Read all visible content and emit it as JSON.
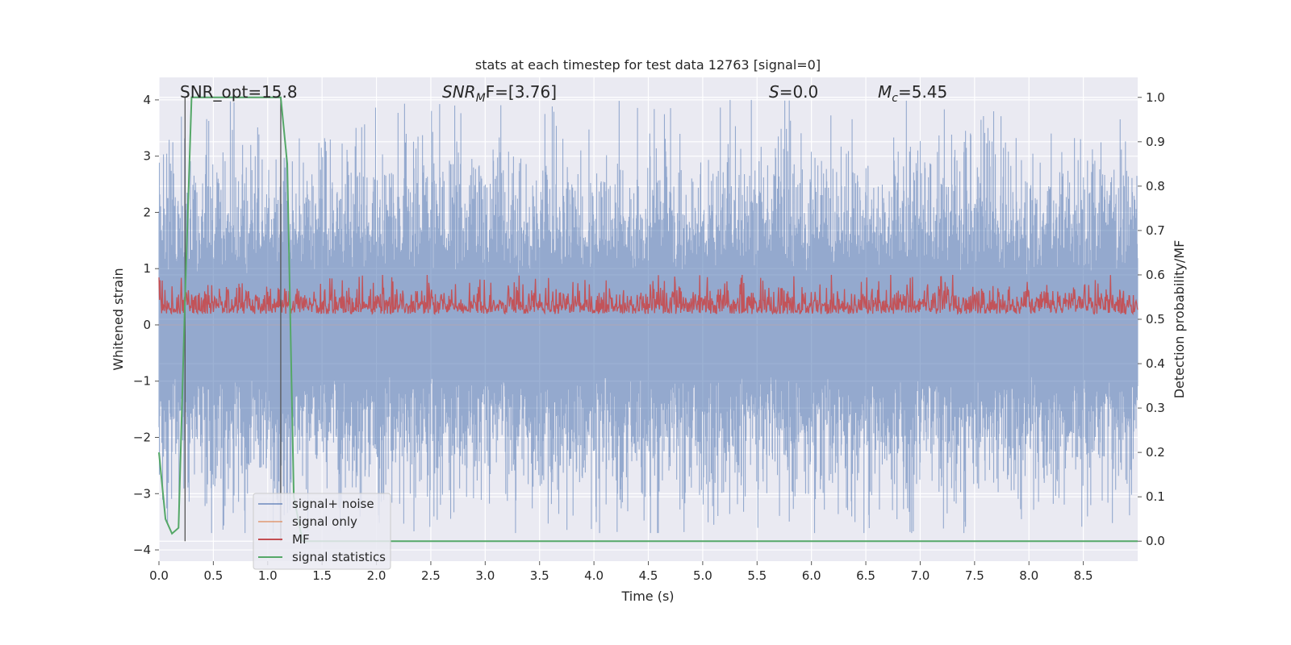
{
  "chart_data": {
    "type": "line",
    "title": "stats at each timestep for test data 12763 [signal=0]",
    "xlabel": "Time (s)",
    "ylabel_left": "Whitened strain",
    "ylabel_right": "Detection probability/MF",
    "xlim": [
      0,
      9.0
    ],
    "ylim_left": [
      -4.2,
      4.4
    ],
    "ylim_right": [
      -0.045,
      1.045
    ],
    "x_ticks": [
      "0.0",
      "0.5",
      "1.0",
      "1.5",
      "2.0",
      "2.5",
      "3.0",
      "3.5",
      "4.0",
      "4.5",
      "5.0",
      "5.5",
      "6.0",
      "6.5",
      "7.0",
      "7.5",
      "8.0",
      "8.5"
    ],
    "y_left_ticks": [
      "4",
      "3",
      "2",
      "1",
      "0",
      "−1",
      "−2",
      "−3",
      "−4"
    ],
    "y_right_ticks": [
      "1.0",
      "0.9",
      "0.8",
      "0.7",
      "0.6",
      "0.5",
      "0.4",
      "0.3",
      "0.2",
      "0.1",
      "0.0"
    ],
    "grid": true,
    "legend_position": "lower-left",
    "annotations": {
      "snr_opt": "SNR_opt=15.8",
      "snr_mf_base": "SNR",
      "snr_mf_sub": "M",
      "snr_mf_rest": "F=[3.76]",
      "s_italic": "S",
      "s_value": "=0.0",
      "mc_base": "M",
      "mc_sub": "c",
      "mc_value": "=5.45"
    },
    "series": [
      {
        "name": "signal+ noise",
        "color": "#4c72b0",
        "description_axis": "left",
        "amplitude_envelope": [
          -3.7,
          4.0
        ]
      },
      {
        "name": "signal only",
        "color": "#dd8452",
        "axis": "left",
        "values_constant": 0.0
      },
      {
        "name": "MF",
        "color": "#c44e52",
        "axis": "right",
        "range": [
          0.5,
          0.6
        ]
      },
      {
        "name": "signal statistics",
        "color": "#55a868",
        "axis": "right",
        "x": [
          0.0,
          0.06,
          0.12,
          0.18,
          0.24,
          0.3,
          0.36,
          0.9,
          1.12,
          1.18,
          1.24,
          1.32,
          1.5,
          3.0,
          6.0,
          9.0
        ],
        "values": [
          0.2,
          0.05,
          0.017,
          0.03,
          0.55,
          1.0,
          1.0,
          1.0,
          1.0,
          0.85,
          0.1,
          0.0,
          0.0,
          0.0,
          0.0,
          0.0
        ]
      }
    ],
    "vertical_markers": [
      0.24,
      1.12
    ]
  }
}
